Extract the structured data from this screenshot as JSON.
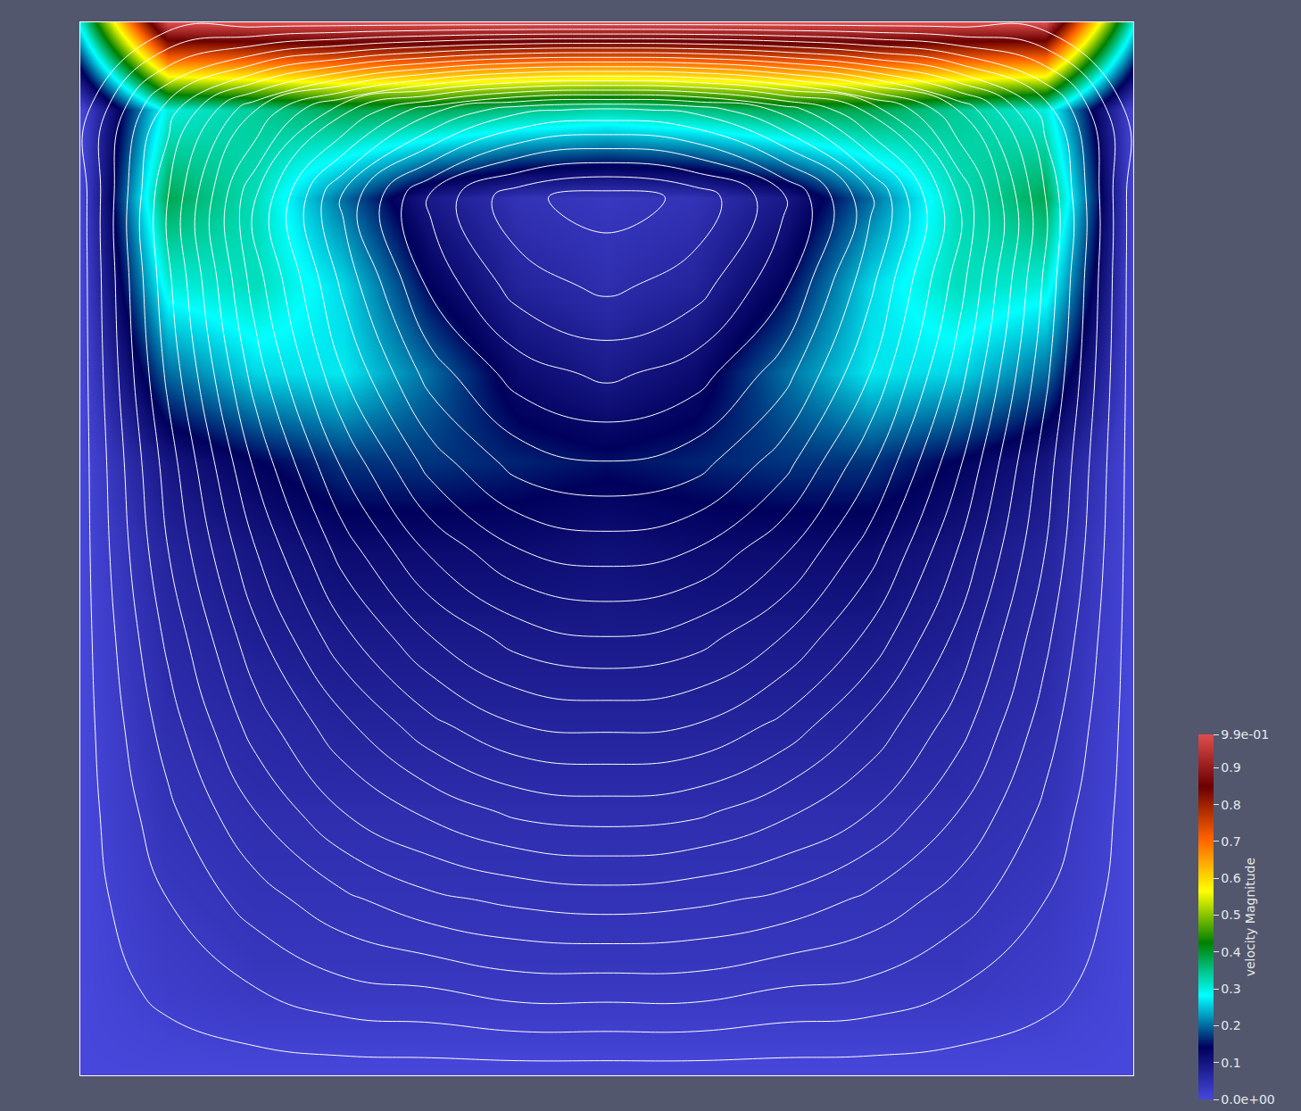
{
  "chart_data": {
    "type": "heatmap",
    "x": [
      0,
      0.0833,
      0.1667,
      0.25,
      0.3333,
      0.4167,
      0.5,
      0.5833,
      0.6667,
      0.75,
      0.8333,
      0.9167,
      1
    ],
    "y": [
      0,
      0.0833,
      0.1667,
      0.25,
      0.3333,
      0.4167,
      0.5,
      0.5833,
      0.6667,
      0.75,
      0.8333,
      0.9167,
      1
    ],
    "cells": [
      [
        0,
        0,
        0,
        0,
        0,
        0,
        0,
        0,
        0,
        0,
        0,
        0,
        0
      ],
      [
        0,
        0.02,
        0.03,
        0.03,
        0.03,
        0.03,
        0.03,
        0.03,
        0.03,
        0.03,
        0.03,
        0.02,
        0
      ],
      [
        0,
        0.03,
        0.04,
        0.04,
        0.04,
        0.04,
        0.04,
        0.04,
        0.04,
        0.04,
        0.04,
        0.03,
        0
      ],
      [
        0,
        0.04,
        0.05,
        0.05,
        0.05,
        0.05,
        0.05,
        0.05,
        0.05,
        0.05,
        0.05,
        0.04,
        0
      ],
      [
        0,
        0.05,
        0.06,
        0.07,
        0.07,
        0.07,
        0.07,
        0.07,
        0.07,
        0.07,
        0.06,
        0.05,
        0
      ],
      [
        0,
        0.06,
        0.08,
        0.09,
        0.09,
        0.09,
        0.09,
        0.09,
        0.09,
        0.09,
        0.08,
        0.06,
        0
      ],
      [
        0,
        0.07,
        0.1,
        0.12,
        0.12,
        0.12,
        0.11,
        0.12,
        0.12,
        0.12,
        0.1,
        0.07,
        0
      ],
      [
        0,
        0.1,
        0.14,
        0.17,
        0.17,
        0.16,
        0.15,
        0.16,
        0.17,
        0.17,
        0.14,
        0.1,
        0
      ],
      [
        0,
        0.2,
        0.26,
        0.27,
        0.2,
        0.12,
        0.09,
        0.12,
        0.2,
        0.27,
        0.26,
        0.2,
        0
      ],
      [
        0,
        0.3,
        0.32,
        0.26,
        0.14,
        0.07,
        0.05,
        0.07,
        0.14,
        0.26,
        0.32,
        0.3,
        0
      ],
      [
        0,
        0.38,
        0.32,
        0.2,
        0.09,
        0.04,
        0.03,
        0.04,
        0.09,
        0.2,
        0.32,
        0.38,
        0
      ],
      [
        0,
        0.3,
        0.34,
        0.38,
        0.38,
        0.35,
        0.33,
        0.35,
        0.38,
        0.38,
        0.34,
        0.3,
        0
      ],
      [
        0.3,
        0.99,
        0.99,
        0.99,
        0.99,
        0.99,
        0.99,
        0.99,
        0.99,
        0.99,
        0.99,
        0.99,
        0.3
      ]
    ],
    "stream_function": [
      [
        0,
        0,
        0,
        0,
        0,
        0,
        0,
        0,
        0,
        0,
        0,
        0,
        0
      ],
      [
        0,
        -0.03,
        -0.06,
        -0.09,
        -0.1,
        -0.12,
        -0.12,
        -0.12,
        -0.1,
        -0.09,
        -0.06,
        -0.03,
        0
      ],
      [
        0,
        -0.06,
        -0.12,
        -0.17,
        -0.21,
        -0.23,
        -0.24,
        -0.23,
        -0.21,
        -0.17,
        -0.12,
        -0.06,
        0
      ],
      [
        0,
        -0.09,
        -0.18,
        -0.26,
        -0.31,
        -0.35,
        -0.36,
        -0.35,
        -0.31,
        -0.26,
        -0.18,
        -0.09,
        0
      ],
      [
        0,
        -0.12,
        -0.24,
        -0.33,
        -0.41,
        -0.46,
        -0.47,
        -0.46,
        -0.41,
        -0.33,
        -0.24,
        -0.12,
        0
      ],
      [
        0,
        -0.15,
        -0.29,
        -0.41,
        -0.5,
        -0.56,
        -0.58,
        -0.56,
        -0.5,
        -0.41,
        -0.29,
        -0.15,
        0
      ],
      [
        0,
        -0.18,
        -0.34,
        -0.48,
        -0.59,
        -0.66,
        -0.68,
        -0.66,
        -0.59,
        -0.48,
        -0.34,
        -0.18,
        0
      ],
      [
        0,
        -0.2,
        -0.39,
        -0.55,
        -0.68,
        -0.76,
        -0.78,
        -0.76,
        -0.68,
        -0.55,
        -0.39,
        -0.2,
        0
      ],
      [
        0,
        -0.23,
        -0.44,
        -0.62,
        -0.76,
        -0.84,
        -0.87,
        -0.84,
        -0.76,
        -0.62,
        -0.44,
        -0.23,
        0
      ],
      [
        0,
        -0.25,
        -0.48,
        -0.67,
        -0.83,
        -0.92,
        -0.95,
        -0.92,
        -0.83,
        -0.67,
        -0.48,
        -0.25,
        0
      ],
      [
        0,
        -0.26,
        -0.5,
        -0.71,
        -0.87,
        -0.97,
        -1,
        -0.97,
        -0.87,
        -0.71,
        -0.5,
        -0.26,
        0
      ],
      [
        0,
        -0.2,
        -0.38,
        -0.53,
        -0.65,
        -0.73,
        -0.75,
        -0.73,
        -0.65,
        -0.53,
        -0.38,
        -0.2,
        0
      ],
      [
        0,
        0,
        0,
        0,
        0,
        0,
        0,
        0,
        0,
        0,
        0,
        0,
        0
      ]
    ],
    "xlim": [
      0,
      1
    ],
    "ylim": [
      0,
      1
    ],
    "tick_labels": false,
    "colorbar": {
      "title": "velocity Magnitude",
      "range": [
        0,
        0.99
      ],
      "ticks": [
        {
          "value": 0,
          "label": "0.0e+00"
        },
        0.1,
        0.2,
        0.3,
        0.4,
        0.5,
        0.6,
        0.7,
        0.8,
        0.9,
        {
          "value": 0.99,
          "label": "9.9e-01"
        }
      ]
    }
  }
}
